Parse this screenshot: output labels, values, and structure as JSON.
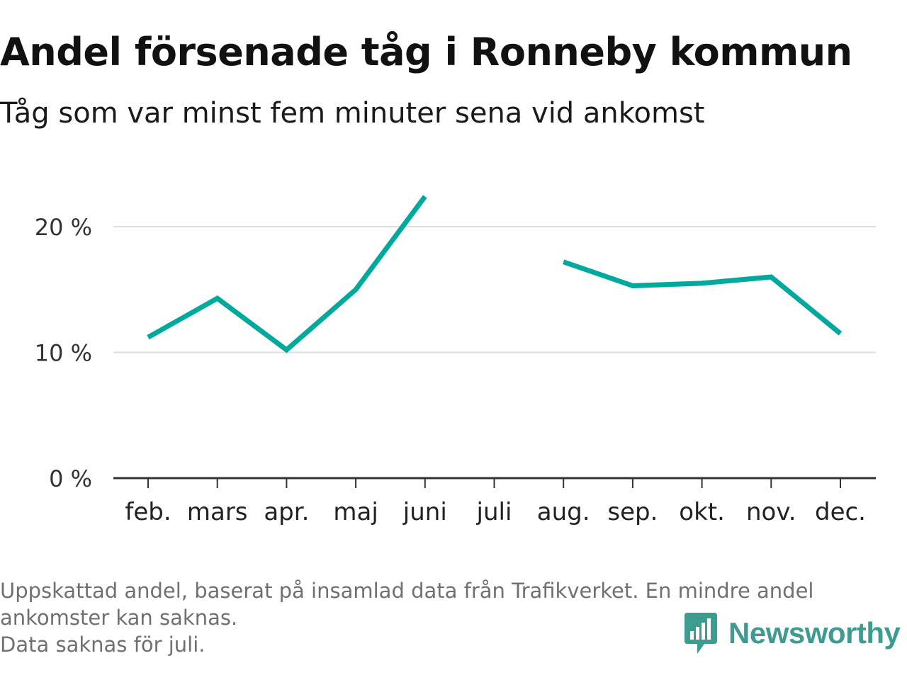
{
  "title": "Andel försenade tåg i Ronneby kommun",
  "subtitle": "Tåg som var minst fem minuter sena vid ankomst",
  "footnote": {
    "line1": "Uppskattad andel, baserat på insamlad data från Trafikverket. En mindre andel",
    "line2": "ankomster kan saknas.",
    "line3": "Data saknas för juli."
  },
  "brand": {
    "name": "Newsworthy",
    "color": "#3d9b8f"
  },
  "chart_data": {
    "type": "line",
    "categories": [
      "feb.",
      "mars",
      "apr.",
      "maj",
      "juni",
      "juli",
      "aug.",
      "sep.",
      "okt.",
      "nov.",
      "dec."
    ],
    "series": [
      {
        "values": [
          11.2,
          14.3,
          10.2,
          15.0,
          22.4,
          null,
          17.2,
          15.3,
          15.5,
          16.0,
          11.5
        ],
        "color": "#00a99d"
      }
    ],
    "ylim": [
      0,
      25
    ],
    "yticks": [
      0,
      10,
      20
    ],
    "ytick_labels": [
      "0 %",
      "10 %",
      "20 %"
    ],
    "grid": true,
    "gridline_color": "#dddddd",
    "axis_color": "#333333"
  }
}
